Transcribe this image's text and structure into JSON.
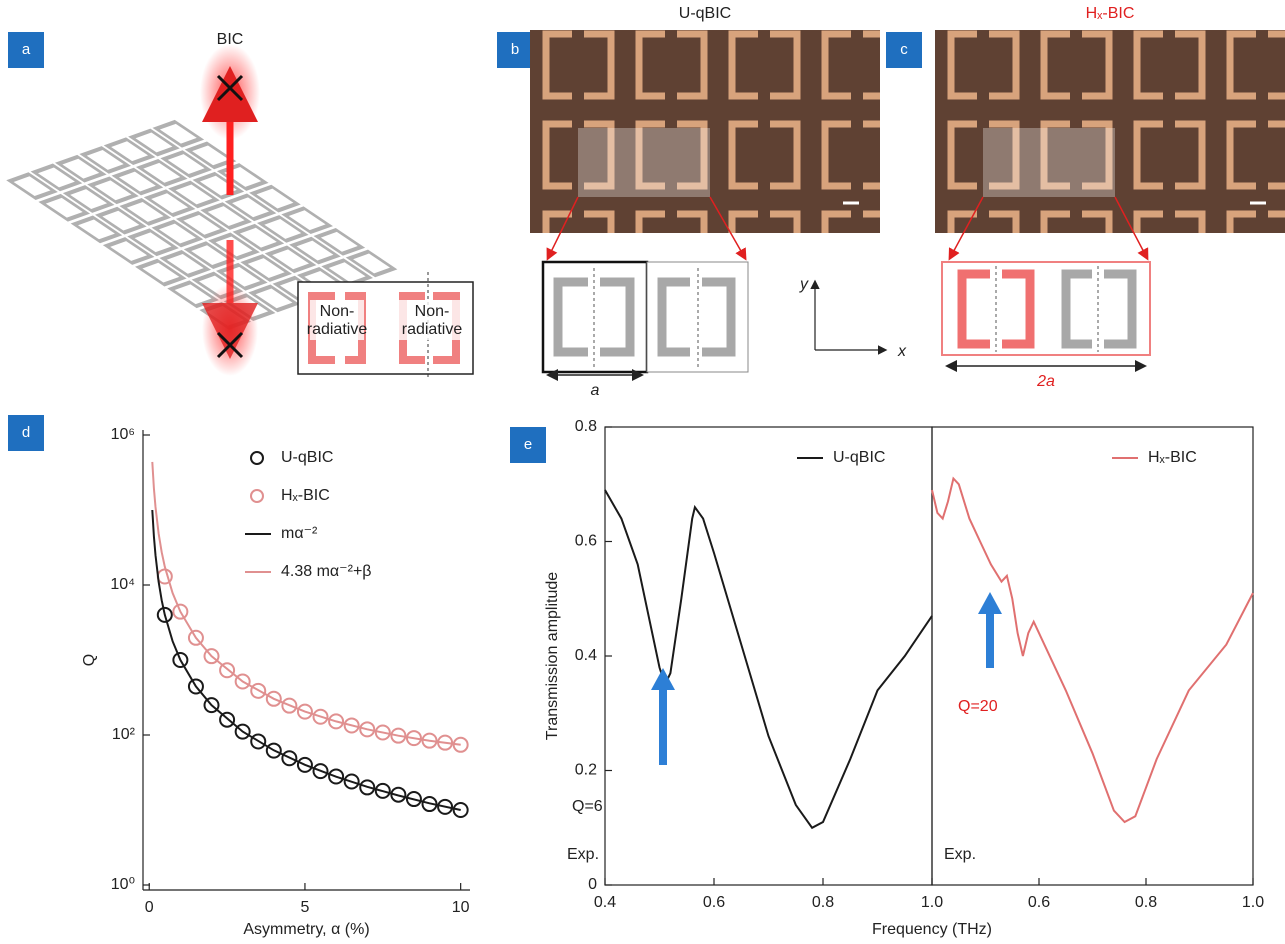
{
  "figure": {
    "panel_labels": [
      "a",
      "b",
      "c",
      "d",
      "e"
    ],
    "a": {
      "title": "BIC",
      "inset_labels": [
        [
          "Non-",
          "radiative"
        ],
        [
          "Non-",
          "radiative"
        ]
      ]
    },
    "b": {
      "title": "U-qBIC",
      "dimension": "a"
    },
    "c": {
      "title": "Hₓ-BIC",
      "dimension": "2a"
    },
    "axes": [
      "y",
      "x"
    ]
  },
  "chart_data": [
    {
      "type": "scatter",
      "log_y": true,
      "xlabel": "Asymmetry, α (%)",
      "ylabel": "Q",
      "xlim": [
        -0.2,
        10.3
      ],
      "xticks": [
        0,
        5,
        10
      ],
      "ylim": [
        1,
        1000000
      ],
      "yticks": [
        {
          "value": 1,
          "label": "10⁰"
        },
        {
          "value": 100,
          "label": "10²"
        },
        {
          "value": 10000,
          "label": "10⁴"
        },
        {
          "value": 1000000,
          "label": "10⁶"
        }
      ],
      "series": [
        {
          "name": "U-qBIC",
          "type": "scatter",
          "color": "#1a1a1a",
          "x": [
            0.5,
            1,
            1.5,
            2,
            2.5,
            3,
            3.5,
            4,
            4.5,
            5,
            5.5,
            6,
            6.5,
            7,
            7.5,
            8,
            8.5,
            9,
            9.5,
            10
          ],
          "values": [
            4000,
            1000,
            444,
            250,
            160,
            111,
            82,
            62,
            49,
            40,
            33,
            28,
            24,
            20,
            18,
            16,
            14,
            12,
            11,
            10
          ]
        },
        {
          "name": "Hₓ-BIC",
          "type": "scatter",
          "color": "#e09090",
          "x": [
            0.5,
            1,
            1.5,
            2,
            2.5,
            3,
            3.5,
            4,
            4.5,
            5,
            5.5,
            6,
            6.5,
            7,
            7.5,
            8,
            8.5,
            9,
            9.5,
            10
          ],
          "values": [
            13000,
            4410,
            1977,
            1125,
            731,
            517,
            388,
            304,
            246,
            205,
            175,
            152,
            134,
            119,
            108,
            98,
            91,
            84,
            79,
            74
          ]
        },
        {
          "name": "mα⁻²",
          "type": "line",
          "color": "#1a1a1a",
          "x": [
            0.1,
            0.15,
            0.2,
            0.3,
            0.4,
            0.5,
            0.75,
            1,
            1.5,
            2,
            3,
            4,
            5,
            6,
            7,
            8,
            9,
            10
          ],
          "values": [
            100000,
            44400,
            25000,
            11100,
            6250,
            4000,
            1780,
            1000,
            444,
            250,
            111,
            62.5,
            40,
            27.8,
            20.4,
            15.6,
            12.3,
            10
          ]
        },
        {
          "name": "4.38 mα⁻²+β",
          "type": "line",
          "color": "#e09090",
          "x": [
            0.1,
            0.15,
            0.2,
            0.3,
            0.4,
            0.5,
            0.75,
            1,
            1.5,
            2,
            3,
            4,
            5,
            6,
            7,
            8,
            9,
            10
          ],
          "values": [
            438000,
            194700,
            109500,
            48700,
            27400,
            17550,
            7820,
            4410,
            1977,
            1125,
            517,
            304,
            205,
            152,
            119,
            98,
            84,
            74
          ]
        }
      ]
    },
    {
      "type": "line",
      "xlabel": "Frequency (THz)",
      "ylabel": "Transmission amplitude",
      "xlim": [
        0.4,
        1.0
      ],
      "xticks": [
        0.4,
        0.6,
        0.8,
        {
          "value": 1,
          "label": "1.0"
        }
      ],
      "ylim": [
        0,
        0.8
      ],
      "yticks": [
        0,
        0.2,
        0.4,
        0.6,
        0.8
      ],
      "series": [
        {
          "name": "U-qBIC",
          "color": "#1a1a1a",
          "x": [
            0.4,
            0.43,
            0.46,
            0.48,
            0.5,
            0.51,
            0.52,
            0.54,
            0.56,
            0.565,
            0.58,
            0.6,
            0.65,
            0.7,
            0.75,
            0.78,
            0.8,
            0.85,
            0.9,
            0.95,
            1.0
          ],
          "values": [
            0.69,
            0.64,
            0.56,
            0.47,
            0.38,
            0.35,
            0.37,
            0.5,
            0.64,
            0.66,
            0.64,
            0.58,
            0.42,
            0.26,
            0.14,
            0.1,
            0.11,
            0.22,
            0.34,
            0.4,
            0.47
          ]
        }
      ],
      "annotations": [
        {
          "text": "Q=6"
        },
        {
          "text": "Exp."
        }
      ]
    },
    {
      "type": "line",
      "xlim": [
        0.4,
        1.0
      ],
      "xticks": [
        0.6,
        0.8,
        {
          "value": 1,
          "label": "1.0"
        }
      ],
      "ylim": [
        0,
        0.8
      ],
      "series": [
        {
          "name": "Hₓ-BIC",
          "color": "#e07070",
          "x": [
            0.4,
            0.41,
            0.42,
            0.43,
            0.44,
            0.45,
            0.47,
            0.49,
            0.51,
            0.53,
            0.54,
            0.55,
            0.56,
            0.57,
            0.58,
            0.59,
            0.6,
            0.65,
            0.7,
            0.74,
            0.76,
            0.78,
            0.82,
            0.88,
            0.95,
            1.0
          ],
          "values": [
            0.69,
            0.65,
            0.64,
            0.67,
            0.71,
            0.7,
            0.64,
            0.6,
            0.56,
            0.53,
            0.54,
            0.5,
            0.44,
            0.4,
            0.44,
            0.46,
            0.44,
            0.34,
            0.23,
            0.13,
            0.11,
            0.12,
            0.22,
            0.34,
            0.42,
            0.51
          ]
        }
      ],
      "annotations": [
        {
          "text": "Q=20",
          "color": "#e02020"
        },
        {
          "text": "Exp."
        }
      ]
    }
  ]
}
